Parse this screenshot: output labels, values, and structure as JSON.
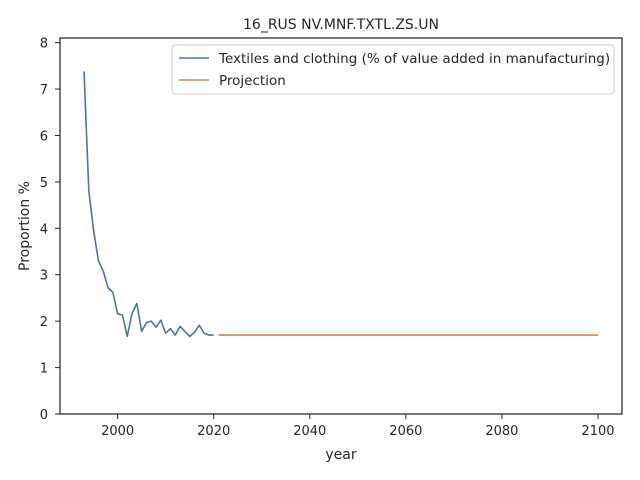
{
  "chart_data": {
    "type": "line",
    "title": "16_RUS NV.MNF.TXTL.ZS.UN",
    "xlabel": "year",
    "ylabel": "Proportion %",
    "xlim": [
      1988,
      2105
    ],
    "ylim": [
      0,
      8.1
    ],
    "xticks": [
      2000,
      2020,
      2040,
      2060,
      2080,
      2100
    ],
    "yticks": [
      0,
      1,
      2,
      3,
      4,
      5,
      6,
      7,
      8
    ],
    "grid": false,
    "legend_position": "top-right",
    "series": [
      {
        "name": "Textiles and clothing (% of value added in manufacturing)",
        "color": "#4c72b0",
        "x": [
          1993,
          1994,
          1995,
          1996,
          1997,
          1998,
          1999,
          2000,
          2001,
          2002,
          2003,
          2004,
          2005,
          2006,
          2007,
          2008,
          2009,
          2010,
          2011,
          2012,
          2013,
          2014,
          2015,
          2016,
          2017,
          2018,
          2019,
          2020
        ],
        "y": [
          7.38,
          4.8,
          3.95,
          3.3,
          3.08,
          2.72,
          2.62,
          2.16,
          2.13,
          1.67,
          2.17,
          2.38,
          1.78,
          1.97,
          2.0,
          1.87,
          2.02,
          1.74,
          1.84,
          1.7,
          1.89,
          1.78,
          1.67,
          1.76,
          1.91,
          1.74,
          1.7,
          1.7
        ]
      },
      {
        "name": "Projection",
        "color": "#dd8452",
        "x": [
          2021,
          2100
        ],
        "y": [
          1.7,
          1.7
        ]
      }
    ]
  }
}
